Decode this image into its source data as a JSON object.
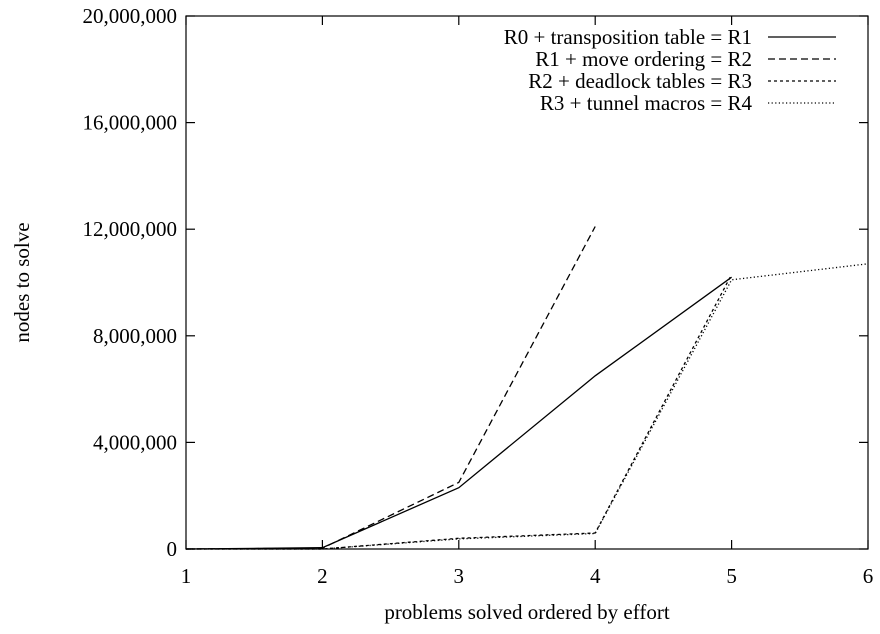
{
  "chart_data": {
    "type": "line",
    "title": "",
    "xlabel": "problems solved ordered by effort",
    "ylabel": "nodes to solve",
    "xlim": [
      1,
      6
    ],
    "ylim": [
      0,
      20000000
    ],
    "xticks": [
      "1",
      "2",
      "3",
      "4",
      "5",
      "6"
    ],
    "yticks": [
      "0",
      "4,000,000",
      "8,000,000",
      "12,000,000",
      "16,000,000",
      "20,000,000"
    ],
    "ytick_values": [
      0,
      4000000,
      8000000,
      12000000,
      16000000,
      20000000
    ],
    "xtick_values": [
      1,
      2,
      3,
      4,
      5,
      6
    ],
    "grid": false,
    "legend_position": "top-right",
    "series": [
      {
        "name": "R0 + transposition table = R1",
        "style": "solid",
        "color": "#000000",
        "x": [
          1,
          2,
          3,
          4,
          5
        ],
        "y": [
          0,
          50000,
          2300000,
          6500000,
          10200000
        ]
      },
      {
        "name": "R1 + move ordering = R2",
        "style": "dashed",
        "color": "#000000",
        "x": [
          1,
          2,
          3,
          4
        ],
        "y": [
          0,
          30000,
          2500000,
          12100000
        ]
      },
      {
        "name": "R2 + deadlock tables = R3",
        "style": "short-dashed",
        "color": "#000000",
        "x": [
          1,
          2,
          3,
          4,
          5
        ],
        "y": [
          0,
          0,
          400000,
          600000,
          10300000
        ]
      },
      {
        "name": "R3 + tunnel macros = R4",
        "style": "dotted",
        "color": "#000000",
        "x": [
          1,
          2,
          3,
          4,
          5,
          6
        ],
        "y": [
          0,
          0,
          380000,
          580000,
          10100000,
          10700000
        ]
      }
    ]
  }
}
